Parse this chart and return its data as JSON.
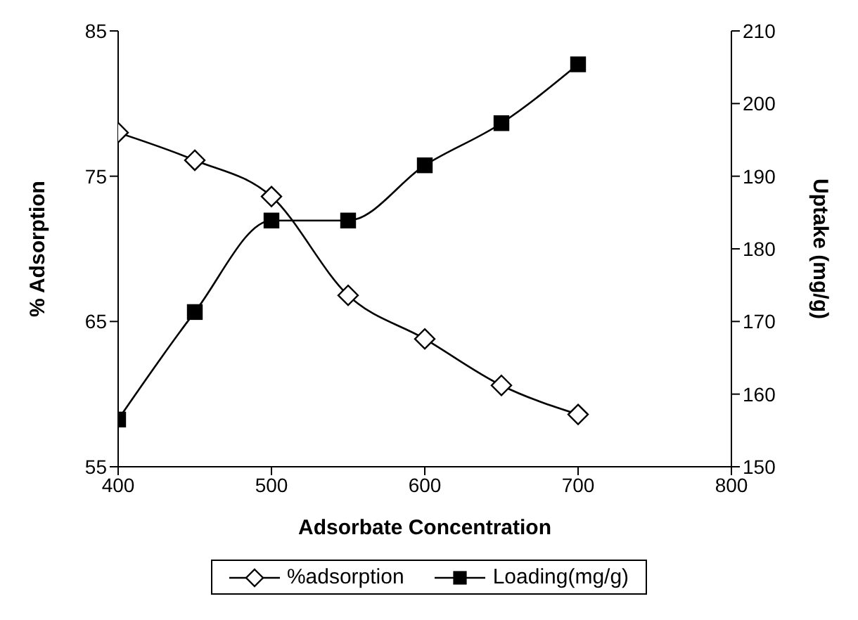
{
  "chart_data": {
    "type": "line",
    "xlabel": "Adsorbate Concentration",
    "ylabel": "% Adsorption",
    "y2label": "Uptake (mg/g)",
    "x": [
      400,
      450,
      500,
      550,
      600,
      650,
      700
    ],
    "series": [
      {
        "name": "%adsorption",
        "color": "#000000",
        "marker": "diamond",
        "values": [
          78.0,
          76.1,
          73.6,
          66.8,
          63.8,
          60.6,
          58.6
        ]
      },
      {
        "name": "Loading(mg/g)",
        "color": "#000000",
        "marker": "square",
        "axis": "y2",
        "values": [
          156.5,
          171.3,
          183.9,
          183.9,
          191.5,
          197.3,
          205.4
        ]
      }
    ],
    "xlim": [
      400,
      800
    ],
    "xticks": [
      400,
      500,
      600,
      700,
      800
    ],
    "ylim": [
      55,
      85
    ],
    "yticks": [
      55,
      65,
      75,
      85
    ],
    "y2lim": [
      150,
      210
    ],
    "y2ticks": [
      150,
      160,
      170,
      180,
      190,
      200,
      210
    ],
    "grid": false,
    "legend": "bottom",
    "line_style": "solid"
  }
}
